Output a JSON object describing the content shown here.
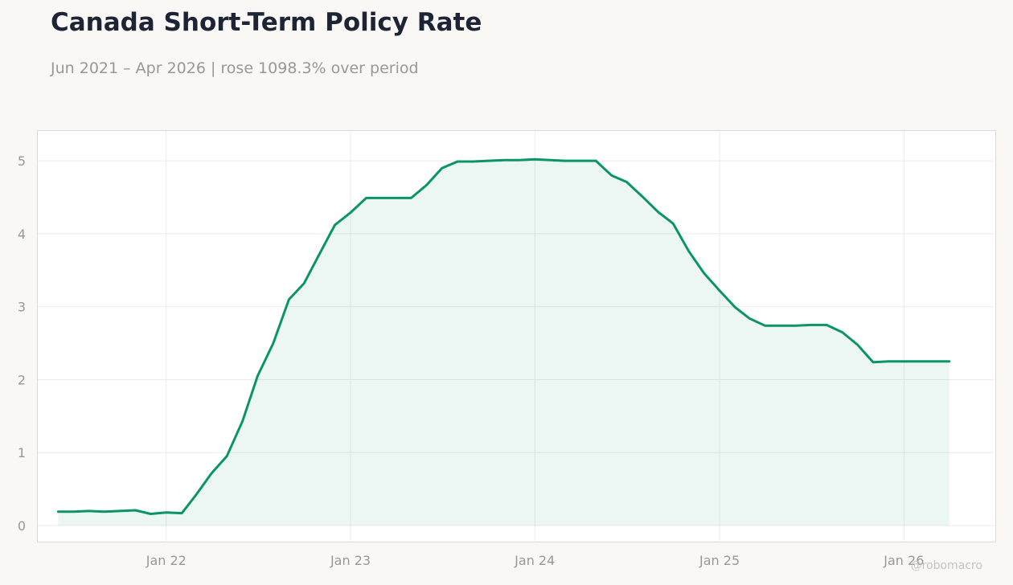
{
  "title": "Canada Short-Term Policy Rate",
  "subtitle": "Jun 2021 – Apr 2026 | rose 1098.3% over period",
  "watermark": "@robomacro",
  "colors": {
    "line": "#0a9468",
    "fill": "#0a9468",
    "grid": "#ecebe7",
    "tick_text": "#9a9892",
    "title": "#1c2436",
    "background": "#f9f8f5",
    "plot_background": "#ffffff"
  },
  "chart_data": {
    "type": "area",
    "title": "Canada Short-Term Policy Rate",
    "subtitle": "Jun 2021 – Apr 2026 | rose 1098.3% over period",
    "xlabel": "",
    "ylabel": "",
    "grid": true,
    "legend": "none",
    "xlim": [
      "2021-04-20",
      "2026-07-01"
    ],
    "ylim": [
      -0.22,
      5.42
    ],
    "x_ticks": [
      {
        "label": "Jan 22",
        "date": "2022-01-01"
      },
      {
        "label": "Jan 23",
        "date": "2023-01-01"
      },
      {
        "label": "Jan 24",
        "date": "2024-01-01"
      },
      {
        "label": "Jan 25",
        "date": "2025-01-01"
      },
      {
        "label": "Jan 26",
        "date": "2026-01-01"
      }
    ],
    "y_ticks": [
      0,
      1,
      2,
      3,
      4,
      5
    ],
    "series": [
      {
        "points": [
          [
            "2021-06-01",
            0.19
          ],
          [
            "2021-07-01",
            0.19
          ],
          [
            "2021-08-01",
            0.2
          ],
          [
            "2021-09-01",
            0.19
          ],
          [
            "2021-10-01",
            0.2
          ],
          [
            "2021-11-01",
            0.21
          ],
          [
            "2021-12-01",
            0.16
          ],
          [
            "2022-01-01",
            0.18
          ],
          [
            "2022-02-01",
            0.17
          ],
          [
            "2022-03-01",
            0.42
          ],
          [
            "2022-04-01",
            0.72
          ],
          [
            "2022-05-01",
            0.95
          ],
          [
            "2022-06-01",
            1.43
          ],
          [
            "2022-07-01",
            2.05
          ],
          [
            "2022-08-01",
            2.5
          ],
          [
            "2022-09-01",
            3.1
          ],
          [
            "2022-10-01",
            3.32
          ],
          [
            "2022-11-01",
            3.73
          ],
          [
            "2022-12-01",
            4.12
          ],
          [
            "2023-01-01",
            4.29
          ],
          [
            "2023-02-01",
            4.49
          ],
          [
            "2023-03-01",
            4.49
          ],
          [
            "2023-04-01",
            4.49
          ],
          [
            "2023-05-01",
            4.49
          ],
          [
            "2023-06-01",
            4.67
          ],
          [
            "2023-07-01",
            4.9
          ],
          [
            "2023-08-01",
            4.99
          ],
          [
            "2023-09-01",
            4.99
          ],
          [
            "2023-10-01",
            5.0
          ],
          [
            "2023-11-01",
            5.01
          ],
          [
            "2023-12-01",
            5.01
          ],
          [
            "2024-01-01",
            5.02
          ],
          [
            "2024-02-01",
            5.01
          ],
          [
            "2024-03-01",
            5.0
          ],
          [
            "2024-04-01",
            5.0
          ],
          [
            "2024-05-01",
            5.0
          ],
          [
            "2024-06-01",
            4.8
          ],
          [
            "2024-07-01",
            4.71
          ],
          [
            "2024-08-01",
            4.51
          ],
          [
            "2024-09-01",
            4.3
          ],
          [
            "2024-10-01",
            4.14
          ],
          [
            "2024-11-01",
            3.76
          ],
          [
            "2024-12-01",
            3.46
          ],
          [
            "2025-01-01",
            3.22
          ],
          [
            "2025-02-01",
            2.99
          ],
          [
            "2025-03-01",
            2.84
          ],
          [
            "2025-04-01",
            2.74
          ],
          [
            "2025-05-01",
            2.74
          ],
          [
            "2025-06-01",
            2.74
          ],
          [
            "2025-07-01",
            2.75
          ],
          [
            "2025-08-01",
            2.75
          ],
          [
            "2025-09-01",
            2.65
          ],
          [
            "2025-10-01",
            2.48
          ],
          [
            "2025-11-01",
            2.24
          ],
          [
            "2025-12-01",
            2.25
          ],
          [
            "2026-01-01",
            2.25
          ],
          [
            "2026-02-01",
            2.25
          ],
          [
            "2026-03-01",
            2.25
          ],
          [
            "2026-04-01",
            2.25
          ]
        ]
      }
    ]
  }
}
